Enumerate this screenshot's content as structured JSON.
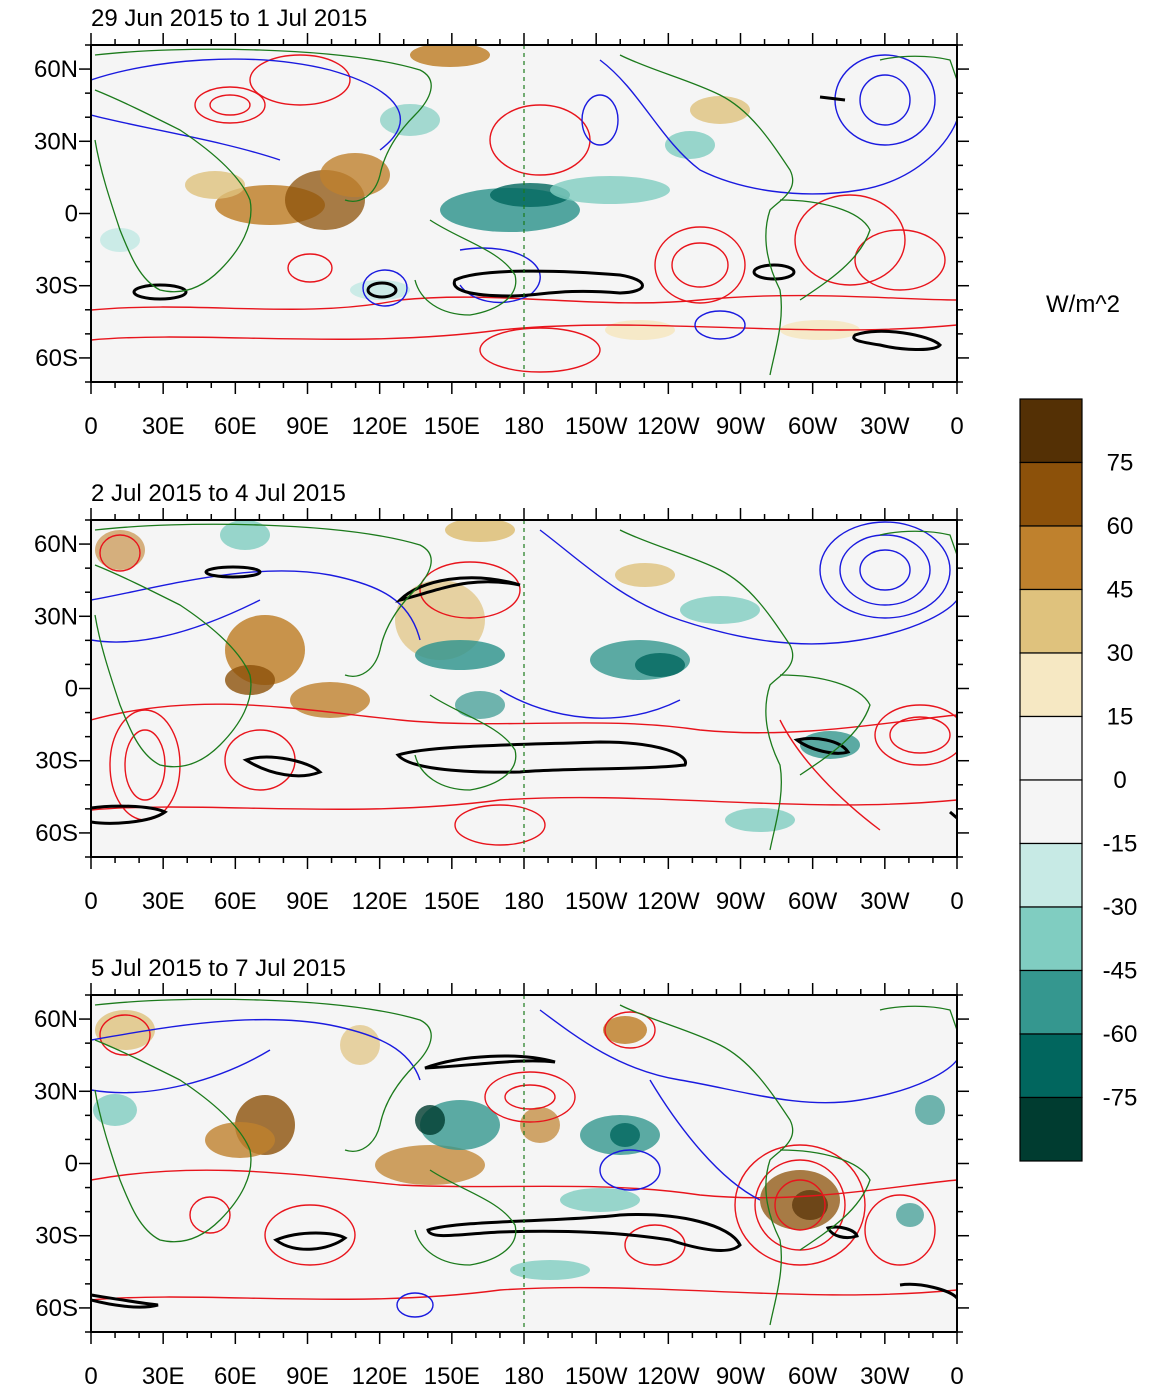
{
  "panels": [
    {
      "title": "29 Jun 2015 to 1 Jul 2015"
    },
    {
      "title": "2 Jul 2015 to 4 Jul 2015"
    },
    {
      "title": "5 Jul 2015 to 7 Jul 2015"
    }
  ],
  "lat_labels": [
    "60N",
    "30N",
    "0",
    "30S",
    "60S"
  ],
  "lat_values": [
    60,
    30,
    0,
    -30,
    -60
  ],
  "lat_range": [
    -70,
    70
  ],
  "lon_labels": [
    "0",
    "30E",
    "60E",
    "90E",
    "120E",
    "150E",
    "180",
    "150W",
    "120W",
    "90W",
    "60W",
    "30W",
    "0"
  ],
  "lon_range": [
    0,
    360
  ],
  "colorbar": {
    "unit": "W/m^2",
    "labels": [
      "75",
      "60",
      "45",
      "30",
      "15",
      "0",
      "-15",
      "-30",
      "-45",
      "-60",
      "-75"
    ],
    "colors": [
      "#543005",
      "#8c510a",
      "#bf812d",
      "#dfc27d",
      "#f6e8c3",
      "#f5f5f5",
      "#f5f5f5",
      "#c7eae5",
      "#80cdc1",
      "#35978f",
      "#01665e",
      "#003c30"
    ]
  },
  "colors": {
    "positive_contour": "#e8141c",
    "negative_contour": "#1a1adf",
    "coastline": "#1b7a1b",
    "zero_contour": "#000000",
    "dateline": "#1b7a1b"
  }
}
